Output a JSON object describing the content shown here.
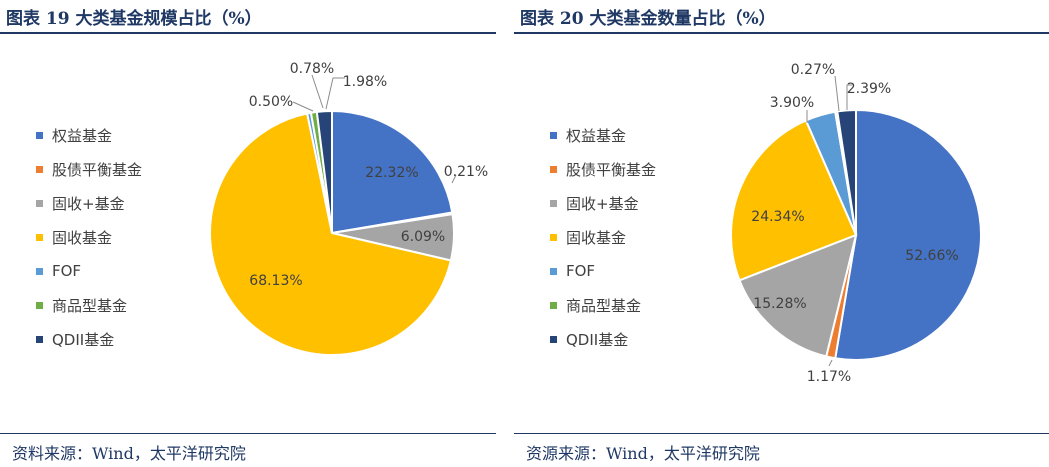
{
  "chart_data": [
    {
      "type": "pie",
      "title": "图表 19 大类基金规模占比（%）",
      "legend_position": "left",
      "source": "资料来源：Wind，太平洋研究院",
      "categories": [
        "权益基金",
        "股债平衡基金",
        "固收+基金",
        "固收基金",
        "FOF",
        "商品型基金",
        "QDII基金"
      ],
      "values": [
        22.32,
        0.21,
        6.09,
        68.13,
        0.5,
        0.78,
        1.98
      ],
      "labels": [
        "22.32%",
        "0.21%",
        "6.09%",
        "68.13%",
        "0.50%",
        "0.78%",
        "1.98%"
      ],
      "colors": [
        "#4472c4",
        "#ed7d31",
        "#a5a5a5",
        "#ffc000",
        "#5b9bd5",
        "#70ad47",
        "#264478"
      ]
    },
    {
      "type": "pie",
      "title": "图表 20 大类基金数量占比（%）",
      "legend_position": "left",
      "source": "资源来源：Wind，太平洋研究院",
      "categories": [
        "权益基金",
        "股债平衡基金",
        "固收+基金",
        "固收基金",
        "FOF",
        "商品型基金",
        "QDII基金"
      ],
      "values": [
        52.66,
        1.17,
        15.28,
        24.34,
        3.9,
        0.27,
        2.39
      ],
      "labels": [
        "52.66%",
        "1.17%",
        "15.28%",
        "24.34%",
        "3.90%",
        "0.27%",
        "2.39%"
      ],
      "colors": [
        "#4472c4",
        "#ed7d31",
        "#a5a5a5",
        "#ffc000",
        "#5b9bd5",
        "#70ad47",
        "#264478"
      ]
    }
  ]
}
